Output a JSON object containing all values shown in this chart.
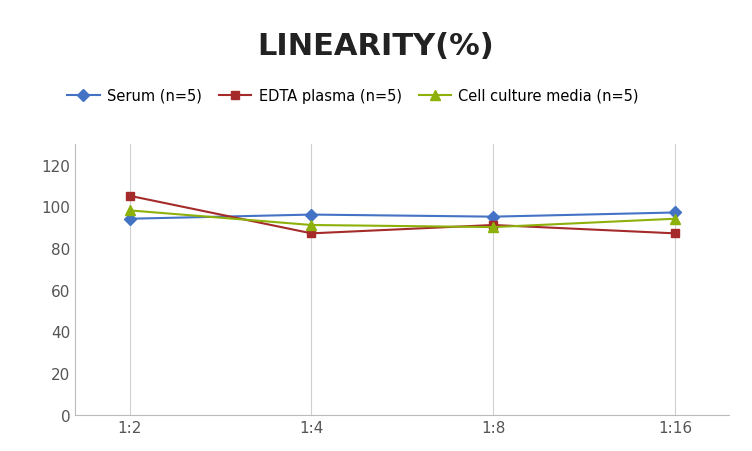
{
  "title": "LINEARITY(%)",
  "x_labels": [
    "1:2",
    "1:4",
    "1:8",
    "1:16"
  ],
  "series": [
    {
      "name": "Serum (n=5)",
      "values": [
        94,
        96,
        95,
        97
      ],
      "color": "#4472C4",
      "marker": "D",
      "marker_size": 6
    },
    {
      "name": "EDTA plasma (n=5)",
      "values": [
        105,
        87,
        91,
        87
      ],
      "color": "#A52A2A",
      "marker": "s",
      "marker_size": 6
    },
    {
      "name": "Cell culture media (n=5)",
      "values": [
        98,
        91,
        90,
        94
      ],
      "color": "#8DB00A",
      "marker": "^",
      "marker_size": 7
    }
  ],
  "ylim": [
    0,
    130
  ],
  "yticks": [
    0,
    20,
    40,
    60,
    80,
    100,
    120
  ],
  "background_color": "#ffffff",
  "grid_color": "#d0d0d0",
  "title_fontsize": 22,
  "legend_fontsize": 10.5,
  "tick_fontsize": 11
}
